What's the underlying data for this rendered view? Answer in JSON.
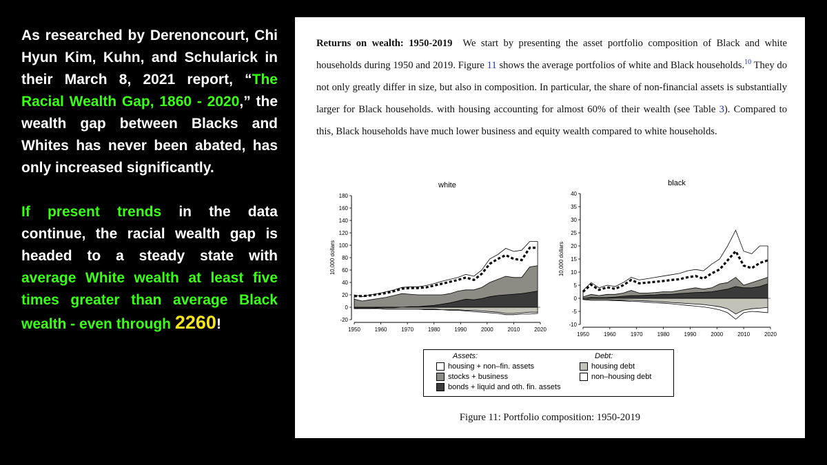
{
  "slide": {
    "p1_a": "As researched by Derenoncourt, Chi Hyun Kim, Kuhn, and Schularick in their March 8, 2021 report, “",
    "p1_link": "The Racial Wealth Gap, 1860 - 2020",
    "p1_b": ",” the wealth gap between Blacks and Whites has never been abated, has only increased significantly.",
    "p2_a": "If present trends",
    "p2_b": " in the data continue, the racial wealth gap is headed to a steady state with ",
    "p2_c": "average White wealth at least five times greater than average Black wealth - even through ",
    "p2_year": "2260",
    "p2_end": "!"
  },
  "paper": {
    "heading": "Returns on wealth: 1950-2019",
    "t1": "We start by presenting the asset portfolio composition of Black and white households during 1950 and 2019. Figure ",
    "fig_ref": "11",
    "t2": " shows the average portfolios of white and Black households.",
    "footnote": "10",
    "t3": " They do not only greatly differ in size, but also in composition. In particular, the share of non-financial assets is substantially larger for Black households. with housing accounting for almost 60% of their wealth (see Table ",
    "table_ref": "3",
    "t4": "). Compared to this, Black households have much lower business and equity wealth compared to white households.",
    "caption": "Figure 11: Portfolio composition: 1950-2019"
  },
  "legend": {
    "assets_title": "Assets:",
    "debt_title": "Debt:",
    "housing_nonfin": "housing + non–fin. assets",
    "stocks_business": "stocks + business",
    "bonds_liquid": "bonds + liquid and oth. fin. assets",
    "housing_debt": "housing debt",
    "nonhousing_debt": "non–housing debt"
  },
  "colors": {
    "background": "#000000",
    "highlight_green": "#39ff14",
    "highlight_yellow": "#f5e61a",
    "link_blue": "#1a33b5",
    "housing_nonfin": "#ffffff",
    "stocks_business": "#8c8c84",
    "bonds_liquid": "#3a3a3a",
    "housing_debt": "#c2c2b8",
    "nonhousing_debt": "#ffffff"
  },
  "chart_data": [
    {
      "type": "area",
      "title": "white",
      "ylabel": "10,000 dollars",
      "xlim": [
        1950,
        2020
      ],
      "ylim": [
        -10,
        180
      ],
      "xticks": [
        1950,
        1960,
        1970,
        1980,
        1990,
        2000,
        2010,
        2020
      ],
      "yticks": [
        -20,
        0,
        20,
        40,
        60,
        80,
        100,
        120,
        140,
        160,
        180
      ],
      "x": [
        1950,
        1953,
        1956,
        1959,
        1962,
        1965,
        1968,
        1971,
        1974,
        1977,
        1980,
        1983,
        1986,
        1989,
        1992,
        1995,
        1998,
        2001,
        2004,
        2007,
        2010,
        2013,
        2016,
        2019
      ],
      "series": [
        {
          "name": "bonds + liquid and oth. fin. assets",
          "values": [
            -2,
            -2,
            -2,
            -1,
            -1,
            -1,
            0,
            1,
            1,
            2,
            3,
            5,
            7,
            10,
            13,
            12,
            14,
            17,
            19,
            20,
            21,
            22,
            24,
            26
          ]
        },
        {
          "name": "stocks + business",
          "values": [
            13,
            10,
            12,
            14,
            16,
            19,
            22,
            21,
            20,
            20,
            20,
            20,
            22,
            26,
            28,
            28,
            32,
            40,
            45,
            50,
            48,
            48,
            65,
            67
          ]
        },
        {
          "name": "housing + non–fin. assets",
          "values": [
            20,
            17,
            20,
            22,
            25,
            28,
            32,
            33,
            33,
            35,
            38,
            42,
            45,
            48,
            53,
            50,
            60,
            78,
            85,
            95,
            90,
            92,
            106,
            106
          ]
        },
        {
          "name": "housing debt",
          "values": [
            -2,
            -2,
            -2,
            -2,
            -3,
            -3,
            -3,
            -3,
            -3,
            -3,
            -3,
            -4,
            -4,
            -4,
            -5,
            -5,
            -6,
            -7,
            -8,
            -10,
            -10,
            -9,
            -8,
            -8
          ]
        },
        {
          "name": "non–housing debt",
          "values": [
            -2,
            -2,
            -2,
            -2,
            -3,
            -3,
            -3,
            -3,
            -3,
            -4,
            -4,
            -4,
            -5,
            -5,
            -6,
            -7,
            -8,
            -9,
            -10,
            -12,
            -12,
            -11,
            -11,
            -10
          ]
        },
        {
          "name": "net wealth",
          "values": [
            18,
            18,
            19,
            21,
            23,
            26,
            30,
            31,
            31,
            32,
            35,
            38,
            41,
            44,
            48,
            44,
            54,
            70,
            78,
            84,
            78,
            76,
            96,
            96
          ]
        }
      ]
    },
    {
      "type": "area",
      "title": "black",
      "ylabel": "10,000 dollars",
      "xlim": [
        1950,
        2020
      ],
      "ylim": [
        -10,
        40
      ],
      "xticks": [
        1950,
        1960,
        1970,
        1980,
        1990,
        2000,
        2010,
        2020
      ],
      "yticks": [
        -10,
        -5,
        0,
        5,
        10,
        15,
        20,
        25,
        30,
        35,
        40
      ],
      "x": [
        1950,
        1953,
        1956,
        1959,
        1962,
        1965,
        1968,
        1971,
        1974,
        1977,
        1980,
        1983,
        1986,
        1989,
        1992,
        1995,
        1998,
        2001,
        2004,
        2007,
        2010,
        2013,
        2016,
        2019
      ],
      "series": [
        {
          "name": "bonds + liquid and oth. fin. assets",
          "values": [
            0,
            0.3,
            0.2,
            0.3,
            0.5,
            0.8,
            1,
            1,
            1.2,
            1.3,
            1.5,
            1.5,
            1.8,
            2,
            2.2,
            2.3,
            2.5,
            3,
            3.5,
            4.5,
            4,
            4,
            4.5,
            5.5
          ]
        },
        {
          "name": "stocks + business",
          "values": [
            0.5,
            1.5,
            1,
            1.5,
            1.5,
            2,
            3,
            2,
            2,
            2.2,
            2.5,
            2.5,
            3,
            3.5,
            4,
            3.5,
            4,
            5.5,
            6,
            8,
            5,
            6,
            7,
            8
          ]
        },
        {
          "name": "housing + non–fin. assets",
          "values": [
            3,
            6,
            4,
            5,
            4.5,
            6,
            8,
            7,
            7.5,
            8,
            8.5,
            9,
            9.5,
            10.5,
            11,
            10.5,
            13,
            15,
            20,
            26,
            18,
            17,
            20,
            20
          ]
        },
        {
          "name": "housing debt",
          "values": [
            -0.3,
            -0.5,
            -0.5,
            -0.5,
            -0.6,
            -0.7,
            -0.8,
            -0.9,
            -1,
            -1.2,
            -1.4,
            -1.6,
            -1.8,
            -2,
            -2.2,
            -2.4,
            -2.8,
            -3.2,
            -4,
            -6,
            -4.5,
            -4,
            -3.8,
            -3.5
          ]
        },
        {
          "name": "non–housing debt",
          "values": [
            -0.5,
            -0.8,
            -0.8,
            -0.8,
            -0.9,
            -1,
            -1.2,
            -1.3,
            -1.5,
            -1.7,
            -1.9,
            -2.1,
            -2.4,
            -2.7,
            -3,
            -3.3,
            -3.8,
            -4.4,
            -5.5,
            -8,
            -5.5,
            -5,
            -5.2,
            -5.5
          ]
        },
        {
          "name": "net wealth",
          "values": [
            2.5,
            5.2,
            3.2,
            4.2,
            3.6,
            5,
            7,
            5.7,
            6,
            6.3,
            6.6,
            7,
            7.3,
            8,
            8.5,
            7.5,
            9.5,
            11,
            14.5,
            18,
            12.5,
            11.5,
            13.5,
            14.5
          ]
        }
      ]
    }
  ]
}
